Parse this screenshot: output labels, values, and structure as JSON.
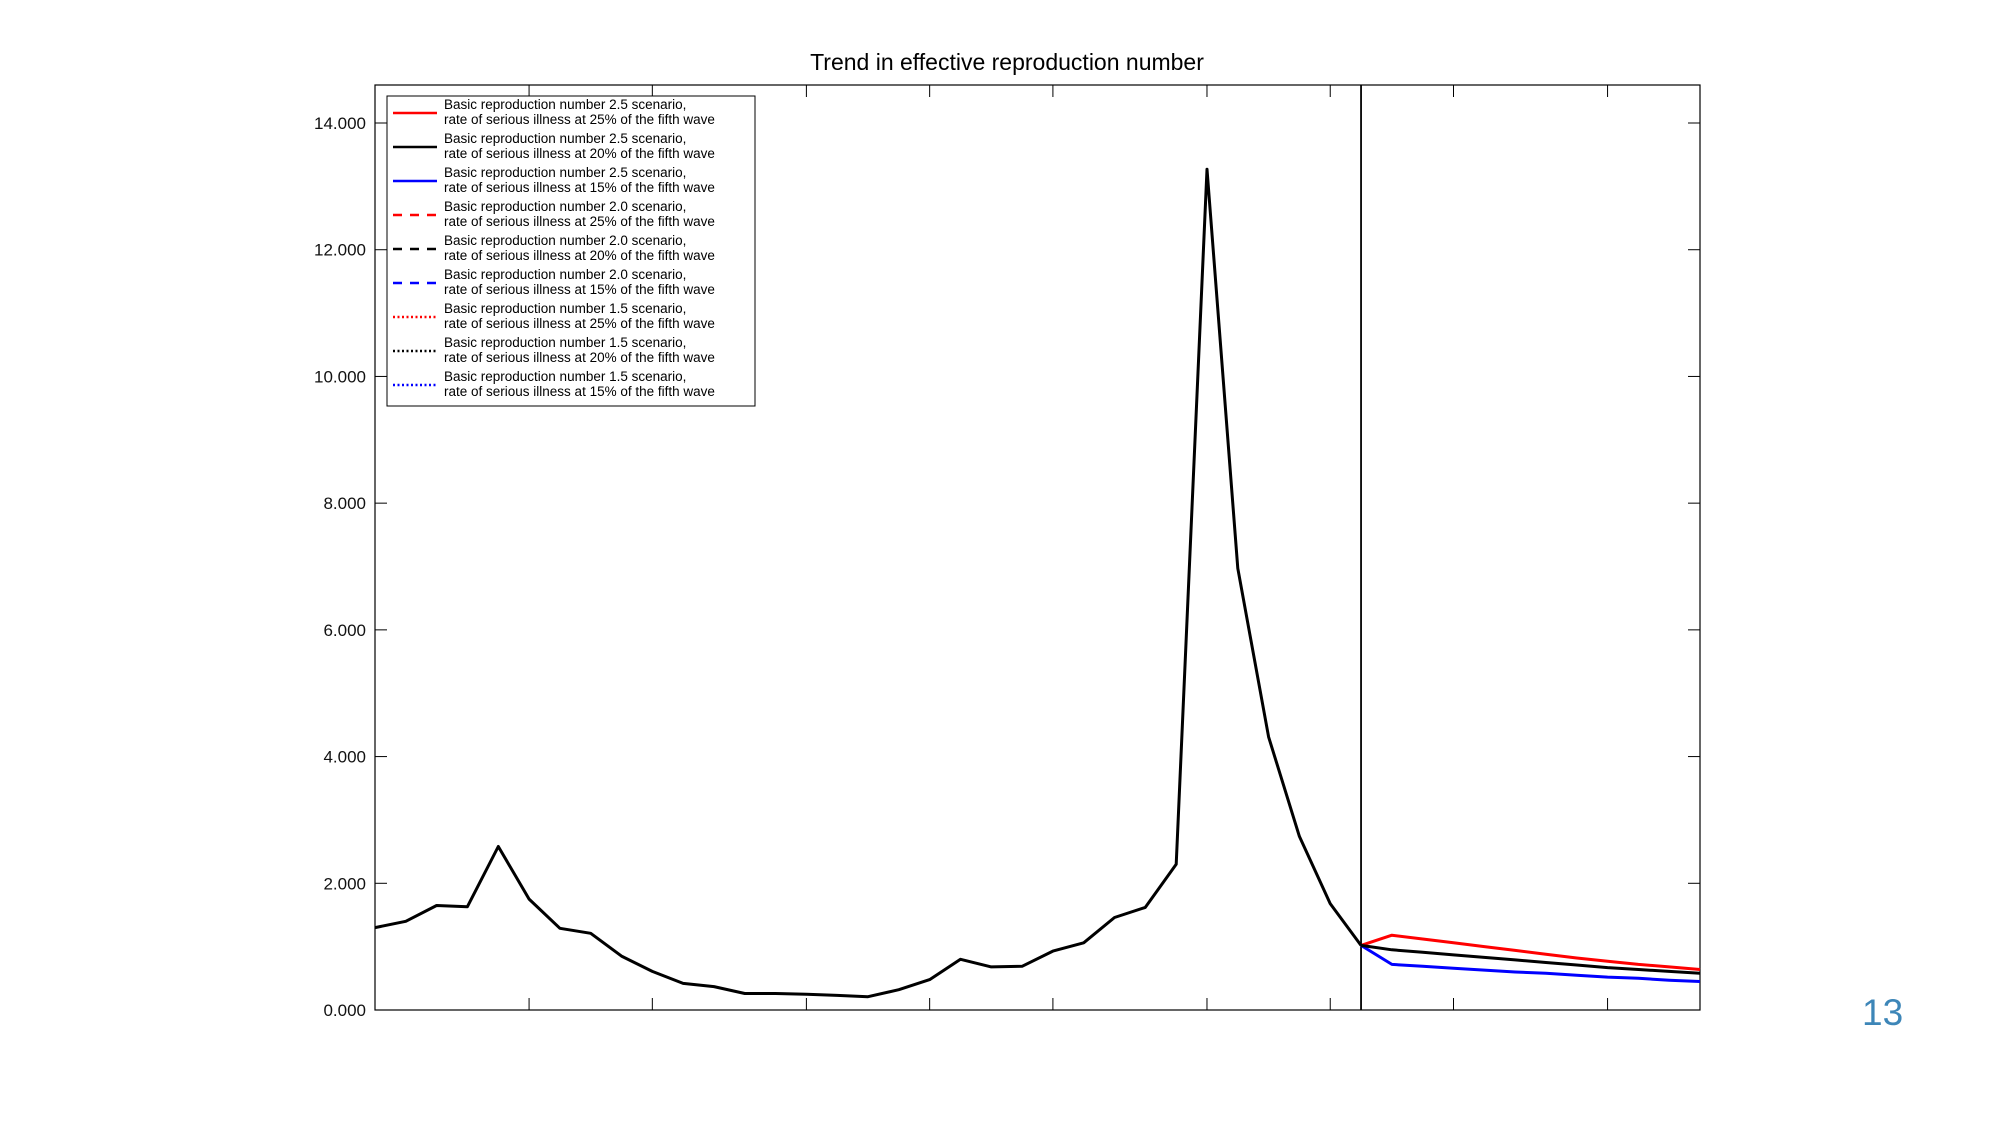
{
  "page": {
    "number": "13",
    "number_color": "#3d86b8"
  },
  "chart_data": {
    "type": "line",
    "title": "Trend in effective reproduction number",
    "xlabel": "",
    "ylabel": "",
    "ylim": [
      0,
      14.6
    ],
    "xlim": [
      0,
      43
    ],
    "yticks": [
      0,
      2,
      4,
      6,
      8,
      10,
      12,
      14
    ],
    "ytick_labels": [
      "0.000",
      "2.000",
      "4.000",
      "6.000",
      "8.000",
      "10.000",
      "12.000",
      "14.000"
    ],
    "xtick_positions": [
      5,
      9,
      14,
      18,
      22,
      27,
      31,
      35,
      40
    ],
    "vline_x": 32,
    "grid": false,
    "legend_position": "top-left",
    "observed": {
      "color": "#000000",
      "x": [
        0,
        1,
        2,
        3,
        4,
        5,
        6,
        7,
        8,
        9,
        10,
        11,
        12,
        13,
        14,
        15,
        16,
        17,
        18,
        19,
        20,
        21,
        22,
        23,
        24,
        25,
        26,
        27,
        28,
        29,
        30,
        31,
        32
      ],
      "y": [
        1.3,
        1.4,
        1.65,
        1.63,
        2.58,
        1.75,
        1.29,
        1.21,
        0.85,
        0.61,
        0.42,
        0.37,
        0.26,
        0.26,
        0.25,
        0.23,
        0.21,
        0.32,
        0.48,
        0.8,
        0.68,
        0.69,
        0.93,
        1.06,
        1.46,
        1.62,
        2.3,
        13.27,
        6.97,
        4.31,
        2.74,
        1.68,
        1.02
      ]
    },
    "series": [
      {
        "label_line1": "Basic reproduction number 2.5 scenario,",
        "label_line2": "rate of serious illness at 25% of the fifth wave",
        "color": "#ff0000",
        "dash": "solid",
        "x": [
          32,
          33,
          34,
          35,
          36,
          37,
          38,
          39,
          40,
          41,
          42,
          43
        ],
        "y": [
          1.02,
          1.18,
          1.12,
          1.06,
          1.0,
          0.94,
          0.88,
          0.82,
          0.77,
          0.72,
          0.68,
          0.64
        ]
      },
      {
        "label_line1": "Basic reproduction number 2.5 scenario,",
        "label_line2": "rate of serious illness at 20% of the fifth wave",
        "color": "#000000",
        "dash": "solid",
        "x": [
          32,
          33,
          34,
          35,
          36,
          37,
          38,
          39,
          40,
          41,
          42,
          43
        ],
        "y": [
          1.02,
          0.95,
          0.91,
          0.87,
          0.83,
          0.79,
          0.75,
          0.71,
          0.67,
          0.64,
          0.61,
          0.58
        ]
      },
      {
        "label_line1": "Basic reproduction number 2.5 scenario,",
        "label_line2": "rate of serious illness at 15% of the fifth wave",
        "color": "#0000ff",
        "dash": "solid",
        "x": [
          32,
          33,
          34,
          35,
          36,
          37,
          38,
          39,
          40,
          41,
          42,
          43
        ],
        "y": [
          1.02,
          0.72,
          0.69,
          0.66,
          0.63,
          0.6,
          0.58,
          0.55,
          0.52,
          0.5,
          0.47,
          0.45
        ]
      },
      {
        "label_line1": "Basic reproduction number 2.0 scenario,",
        "label_line2": "rate of serious illness at 25% of the fifth wave",
        "color": "#ff0000",
        "dash": "dashed",
        "x": [],
        "y": []
      },
      {
        "label_line1": "Basic reproduction number 2.0 scenario,",
        "label_line2": "rate of serious illness at 20% of the fifth wave",
        "color": "#000000",
        "dash": "dashed",
        "x": [],
        "y": []
      },
      {
        "label_line1": "Basic reproduction number 2.0 scenario,",
        "label_line2": "rate of serious illness at 15% of the fifth wave",
        "color": "#0000ff",
        "dash": "dashed",
        "x": [],
        "y": []
      },
      {
        "label_line1": "Basic reproduction number 1.5 scenario,",
        "label_line2": "rate of serious illness at 25% of the fifth wave",
        "color": "#ff0000",
        "dash": "dotted",
        "x": [],
        "y": []
      },
      {
        "label_line1": "Basic reproduction number 1.5 scenario,",
        "label_line2": "rate of serious illness at 20% of the fifth wave",
        "color": "#000000",
        "dash": "dotted",
        "x": [],
        "y": []
      },
      {
        "label_line1": "Basic reproduction number 1.5 scenario,",
        "label_line2": "rate of serious illness at 15% of the fifth wave",
        "color": "#0000ff",
        "dash": "dotted",
        "x": [],
        "y": []
      }
    ]
  }
}
